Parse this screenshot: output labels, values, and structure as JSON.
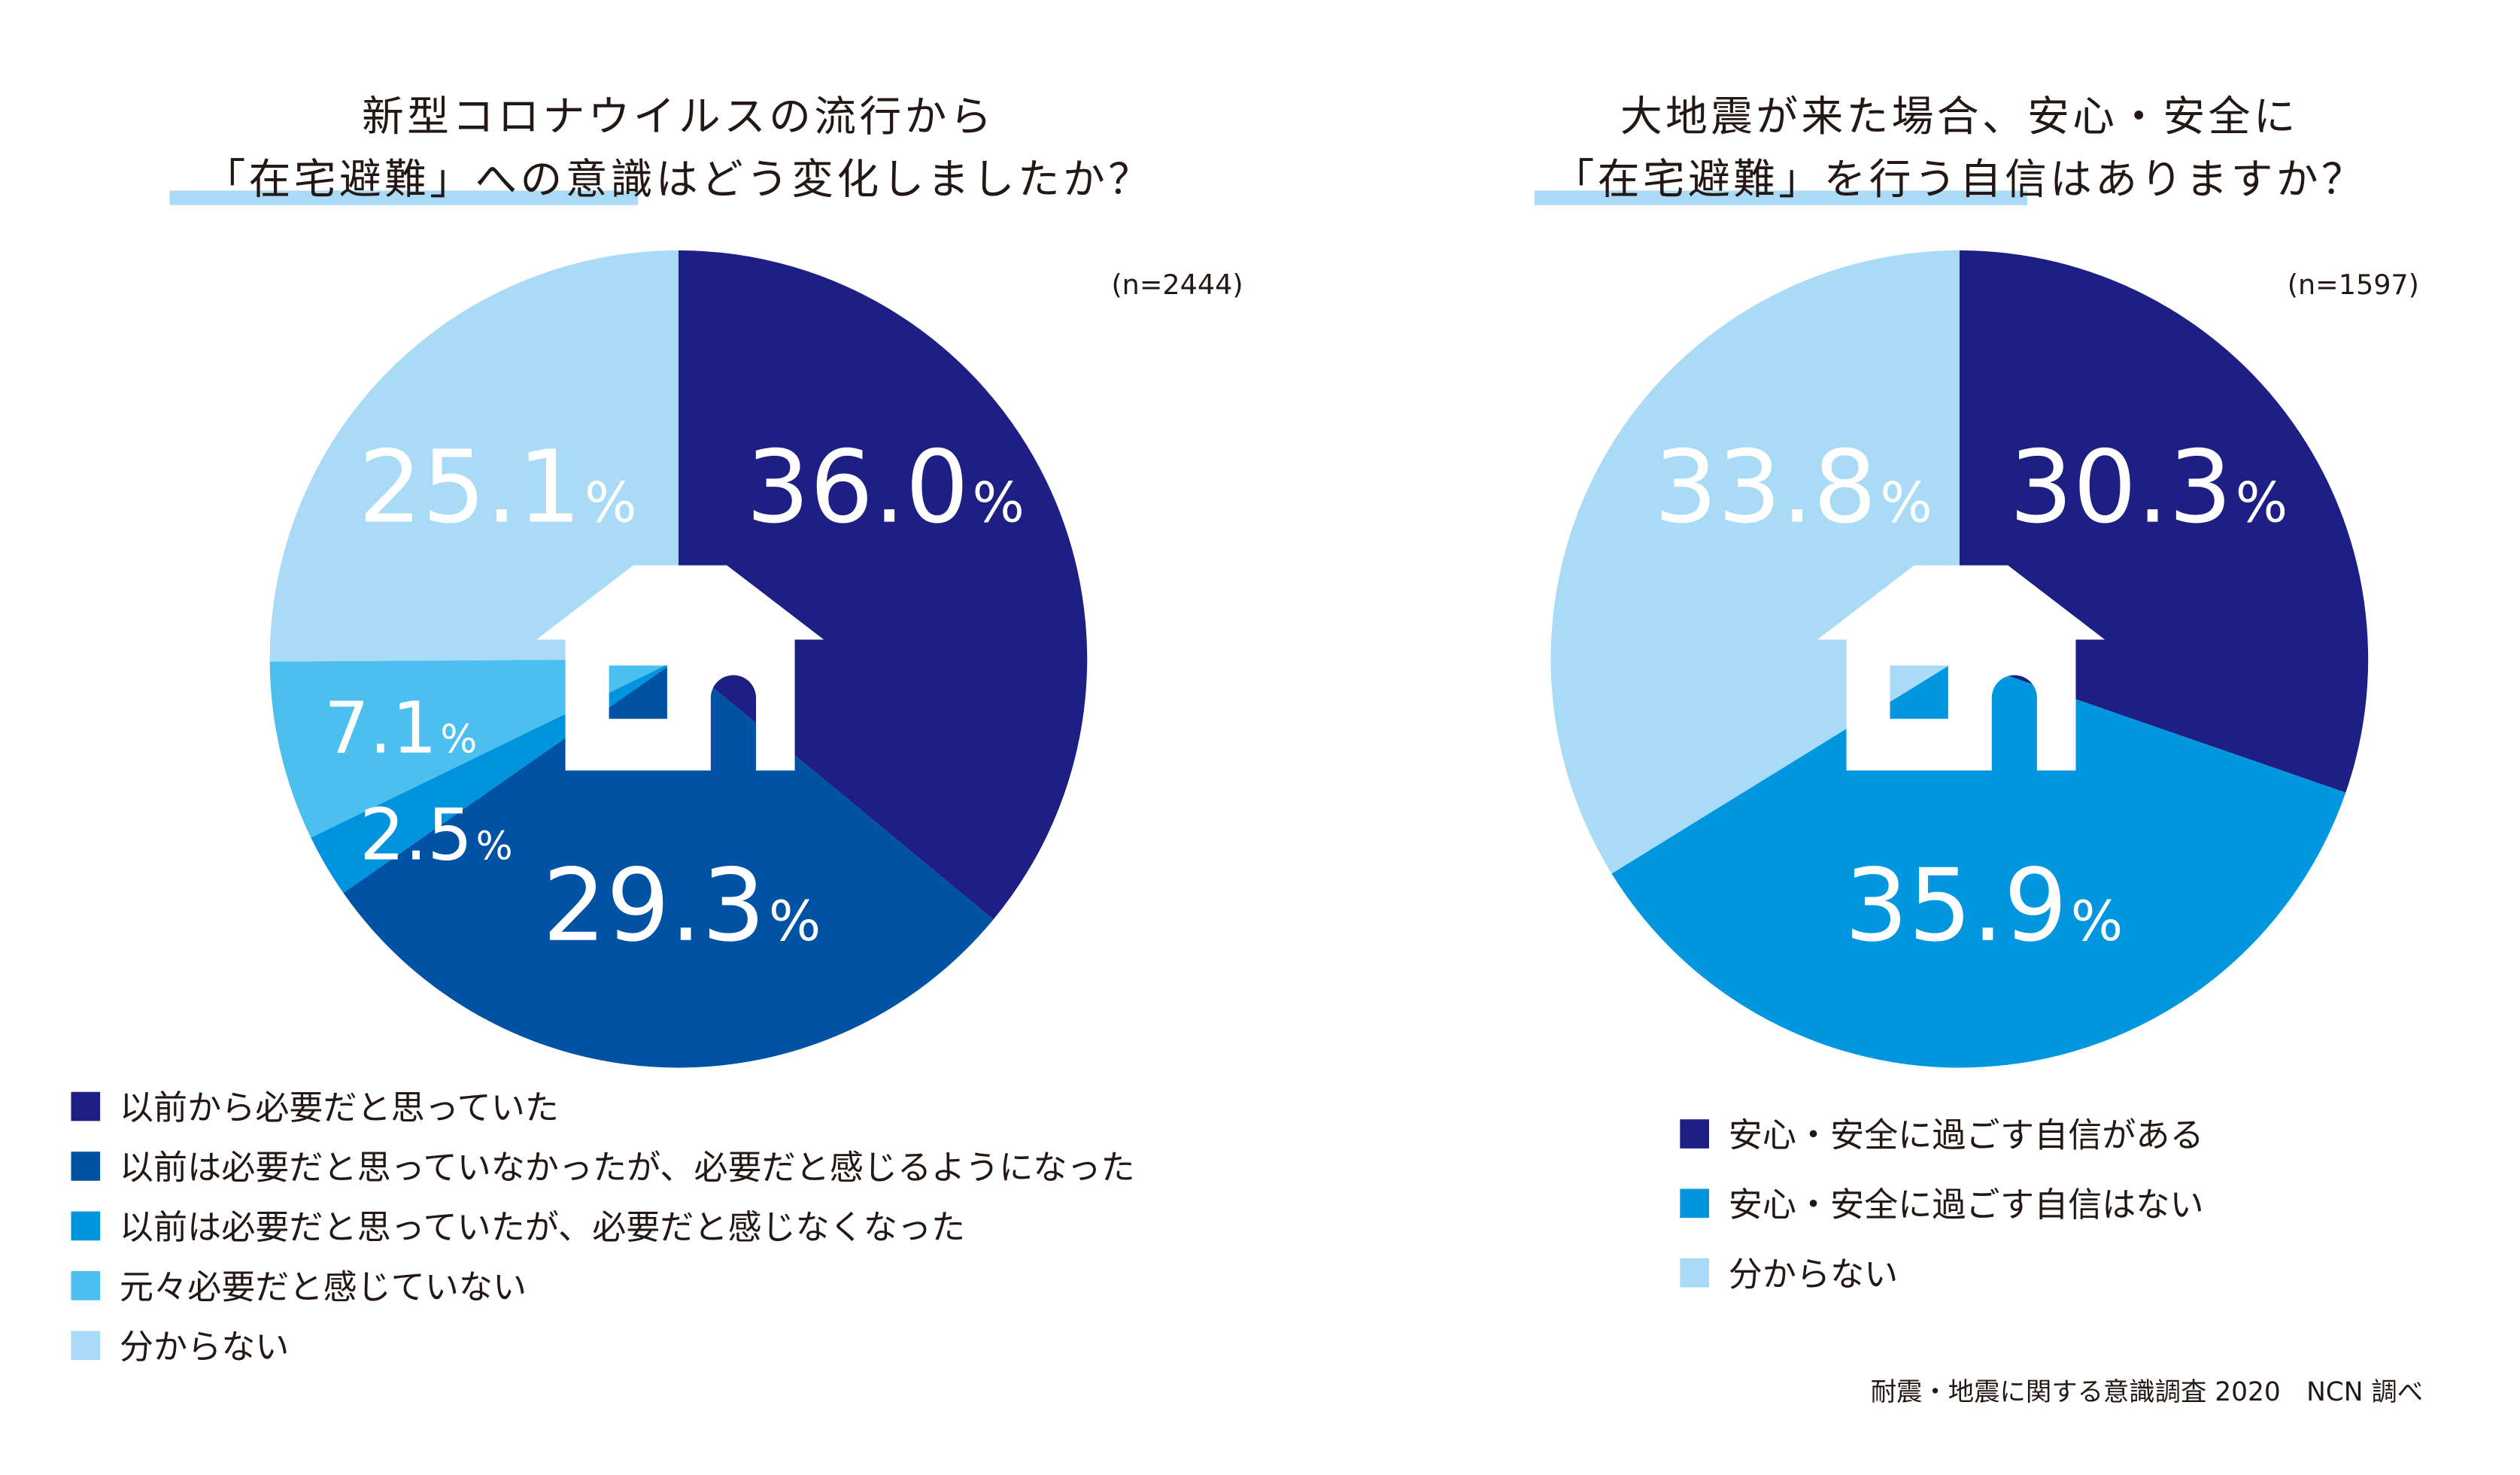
{
  "chart_data": [
    {
      "type": "pie",
      "title_lines": [
        "新型コロナウイルスの流行から",
        "「在宅避難」への意識はどう変化しましたか？"
      ],
      "sample_size": "(n=2444)",
      "slices": [
        {
          "label": "以前から必要だと思っていた",
          "value": 36.0,
          "value_label": "36.0",
          "color": "#1e1f85"
        },
        {
          "label": "以前は必要だと思っていなかったが、必要だと感じるようになった",
          "value": 29.3,
          "value_label": "29.3",
          "color": "#0052a4"
        },
        {
          "label": "以前は必要だと思っていたが、必要だと感じなくなった",
          "value": 2.5,
          "value_label": "2.5",
          "color": "#0094de"
        },
        {
          "label": "元々必要だと感じていない",
          "value": 7.1,
          "value_label": "7.1",
          "color": "#4bc0ef"
        },
        {
          "label": "分からない",
          "value": 25.1,
          "value_label": "25.1",
          "color": "#a9dbf6"
        }
      ],
      "unit": "%",
      "legend_position": "bottom-left"
    },
    {
      "type": "pie",
      "title_lines": [
        "大地震が来た場合、安心・安全に",
        "「在宅避難」を行う自信はありますか？"
      ],
      "sample_size": "(n=1597)",
      "slices": [
        {
          "label": "安心・安全に過ごす自信がある",
          "value": 30.3,
          "value_label": "30.3",
          "color": "#1e1f85"
        },
        {
          "label": "安心・安全に過ごす自信はない",
          "value": 35.9,
          "value_label": "35.9",
          "color": "#0096e0"
        },
        {
          "label": "分からない",
          "value": 33.8,
          "value_label": "33.8",
          "color": "#a9dbf6"
        }
      ],
      "unit": "%",
      "legend_position": "bottom"
    }
  ],
  "title_highlight": [
    "「在宅避難」への意識",
    "「在宅避難」"
  ],
  "title_rest": [
    "はどう変化しましたか？",
    "を行う自信はありますか？"
  ],
  "footer": "耐震・地震に関する意識調査 2020　NCN 調べ",
  "highlight_color": "#a9dbf6",
  "center_icon": "house-icon"
}
